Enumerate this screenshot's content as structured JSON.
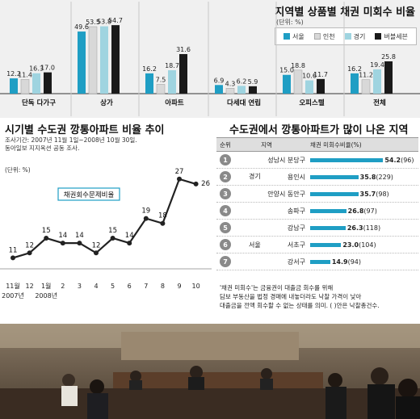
{
  "top": {
    "title": "지역별 상품별 채권 미회수 비율",
    "unit": "(단위: %)",
    "legend": [
      {
        "name": "서울",
        "color": "#1f9ec4"
      },
      {
        "name": "인천",
        "color": "#d8d8d8"
      },
      {
        "name": "경기",
        "color": "#9fd4e0"
      },
      {
        "name": "버블세븐",
        "color": "#1a1a1a"
      }
    ]
  },
  "middle": {
    "title": "시기별 수도권 깡통아파트 비율 추이",
    "source_lines": [
      "조사기간: 2007년 11월 1일~2008년 10월 30일.",
      "동아일보 지지옥션 공동 조사."
    ],
    "unit": "(단위: %)",
    "annotation": "채권회수문제비율"
  },
  "right": {
    "title": "수도권에서 깡통아파트가 많이 나온 지역",
    "headers": [
      "순위",
      "지역",
      "채권 미회수비율(%)"
    ],
    "groups": [
      {
        "name": "경기"
      },
      {
        "name": "서울"
      }
    ],
    "rows": [
      {
        "rank": "1",
        "region": "성남시 분당구",
        "value": "54.2",
        "count": "(96)"
      },
      {
        "rank": "2",
        "region": "용인시",
        "value": "35.8",
        "count": "(229)"
      },
      {
        "rank": "3",
        "region": "안양시 동안구",
        "value": "35.7",
        "count": "(98)"
      },
      {
        "rank": "4",
        "region": "송파구",
        "value": "26.8",
        "count": "(97)"
      },
      {
        "rank": "5",
        "region": "강남구",
        "value": "26.3",
        "count": "(118)"
      },
      {
        "rank": "6",
        "region": "서초구",
        "value": "23.0",
        "count": "(104)"
      },
      {
        "rank": "7",
        "region": "강서구",
        "value": "14.9",
        "count": "(94)"
      }
    ],
    "note_lines": [
      "'채권 미회수'는 금융권이 대출금 회수를 위해",
      "담보 부동산을 법정 경매에 내놓더라도 낙찰 가격이 낮아",
      "대출금을 전액 회수할 수 없는 상태를 의미.      (  )안은 낙찰총건수."
    ]
  },
  "chart_data": [
    {
      "type": "bar",
      "title": "지역별 상품별 채권 미회수 비율",
      "categories": [
        "단독 다가구",
        "상가",
        "아파트",
        "다세대 연립",
        "오피스텔",
        "전체"
      ],
      "series": [
        {
          "name": "서울",
          "values": [
            12.2,
            49.6,
            16.2,
            6.9,
            15.0,
            16.2
          ]
        },
        {
          "name": "인천",
          "values": [
            11.4,
            53.5,
            7.5,
            4.3,
            18.8,
            11.2
          ]
        },
        {
          "name": "경기",
          "values": [
            16.3,
            53.8,
            18.7,
            6.2,
            10.6,
            19.4
          ]
        },
        {
          "name": "버블세븐",
          "values": [
            17.0,
            54.7,
            31.6,
            5.9,
            11.7,
            25.8
          ]
        }
      ],
      "ylabel": "",
      "ylim": [
        0,
        60
      ]
    },
    {
      "type": "line",
      "title": "시기별 수도권 깡통아파트 비율 추이",
      "categories": [
        "11월 2007년",
        "12",
        "1월 2008년",
        "2",
        "3",
        "4",
        "5",
        "6",
        "7",
        "8",
        "9",
        "10"
      ],
      "tick_labels": [
        [
          "11월",
          "2007년"
        ],
        [
          "12"
        ],
        [
          "1월",
          "2008년"
        ],
        [
          "2"
        ],
        [
          "3"
        ],
        [
          "4"
        ],
        [
          "5"
        ],
        [
          "6"
        ],
        [
          "7"
        ],
        [
          "8"
        ],
        [
          "9"
        ],
        [
          "10"
        ]
      ],
      "values": [
        11,
        12,
        15,
        14,
        14,
        12,
        15,
        14,
        19,
        18,
        27,
        26
      ],
      "ylim": [
        5,
        30
      ]
    },
    {
      "type": "bar",
      "title": "수도권에서 깡통아파트가 많이 나온 지역",
      "categories": [
        "성남시 분당구",
        "용인시",
        "안양시 동안구",
        "송파구",
        "강남구",
        "서초구",
        "강서구"
      ],
      "values": [
        54.2,
        35.8,
        35.7,
        26.8,
        26.3,
        23.0,
        14.9
      ],
      "xlim": [
        0,
        60
      ]
    }
  ]
}
